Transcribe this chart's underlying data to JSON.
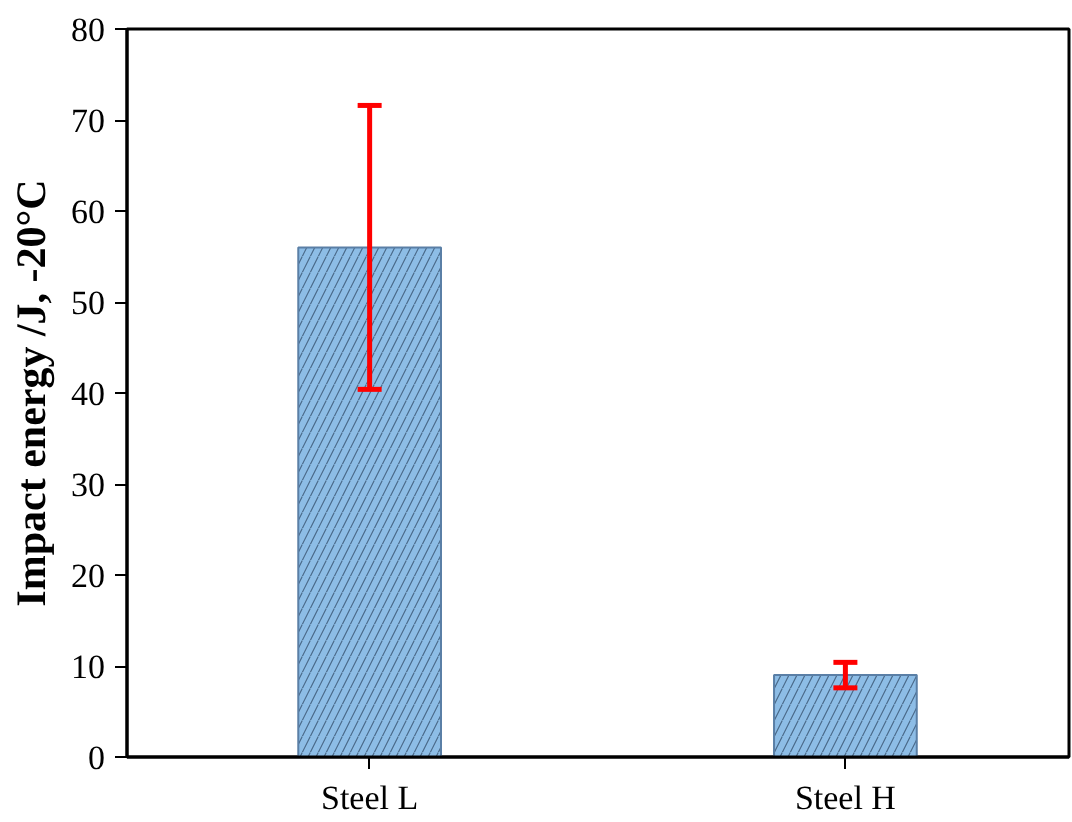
{
  "chart_data": {
    "type": "bar",
    "ylabel": "Impact energy /J, -20°C",
    "categories": [
      "Steel L",
      "Steel H"
    ],
    "values": [
      56,
      9
    ],
    "errors": [
      15.6,
      1.4
    ],
    "color": "#8dbde6",
    "ylim": [
      0,
      80
    ],
    "yticks": [
      0,
      10,
      20,
      30,
      40,
      50,
      60,
      70,
      80
    ],
    "grid": false
  }
}
